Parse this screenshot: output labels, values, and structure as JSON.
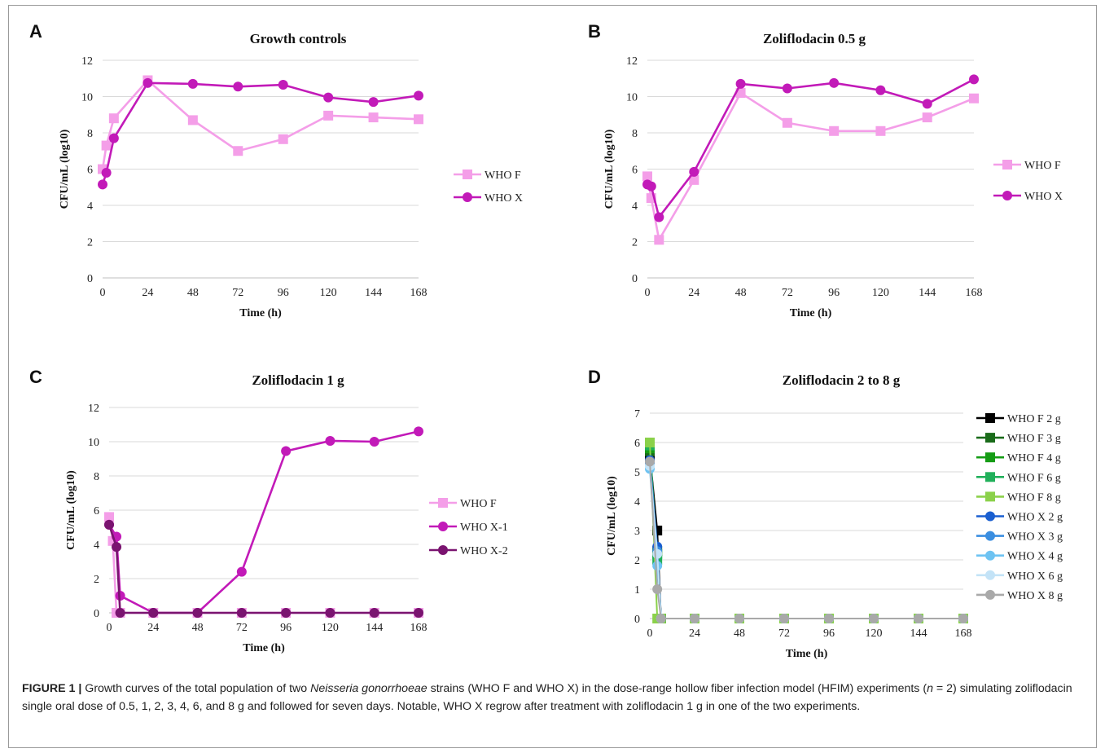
{
  "caption": {
    "label": "FIGURE 1 |",
    "text_1": " Growth curves of the total population of two ",
    "species": "Neisseria gonorrhoeae",
    "text_2": " strains (WHO F and WHO X) in the dose-range hollow fiber infection model (HFIM) experiments (",
    "n": "n",
    "text_3": " = 2) simulating zoliflodacin single oral dose of 0.5, 1, 2, 3, 4, 6, and 8 g and followed for seven days. Notable, WHO X regrow after treatment with zoliflodacin 1 g in one of the two experiments."
  },
  "chart_data": [
    {
      "panel": "A",
      "type": "line",
      "title": "Growth controls",
      "xlabel": "Time (h)",
      "ylabel": "CFU/mL (log10)",
      "xlim": [
        0,
        168
      ],
      "ylim": [
        0,
        12
      ],
      "xticks": [
        0,
        24,
        48,
        72,
        96,
        120,
        144,
        168
      ],
      "yticks": [
        0,
        2,
        4,
        6,
        8,
        10,
        12
      ],
      "grid": true,
      "legend": "right",
      "series": [
        {
          "name": "WHO F",
          "color": "#f49ee8",
          "marker": "square",
          "x": [
            0,
            2,
            6,
            24,
            48,
            72,
            96,
            120,
            144,
            168
          ],
          "y": [
            6.0,
            7.3,
            8.8,
            10.9,
            8.7,
            7.0,
            7.65,
            8.95,
            8.85,
            8.75
          ]
        },
        {
          "name": "WHO X",
          "color": "#c21ab8",
          "marker": "circle",
          "x": [
            0,
            2,
            6,
            24,
            48,
            72,
            96,
            120,
            144,
            168
          ],
          "y": [
            5.15,
            5.8,
            7.7,
            10.75,
            10.7,
            10.55,
            10.65,
            9.95,
            9.7,
            10.05
          ]
        }
      ]
    },
    {
      "panel": "B",
      "type": "line",
      "title": "Zoliflodacin 0.5 g",
      "xlabel": "Time (h)",
      "ylabel": "CFU/mL (log10)",
      "xlim": [
        0,
        168
      ],
      "ylim": [
        0,
        12
      ],
      "xticks": [
        0,
        24,
        48,
        72,
        96,
        120,
        144,
        168
      ],
      "yticks": [
        0,
        2,
        4,
        6,
        8,
        10,
        12
      ],
      "grid": true,
      "legend": "right",
      "series": [
        {
          "name": "WHO F",
          "color": "#f49ee8",
          "marker": "square",
          "x": [
            0,
            2,
            6,
            24,
            48,
            72,
            96,
            120,
            144,
            168
          ],
          "y": [
            5.6,
            4.4,
            2.1,
            5.4,
            10.2,
            8.55,
            8.1,
            8.1,
            8.85,
            9.9
          ]
        },
        {
          "name": "WHO X",
          "color": "#c21ab8",
          "marker": "circle",
          "x": [
            0,
            2,
            6,
            24,
            48,
            72,
            96,
            120,
            144,
            168
          ],
          "y": [
            5.15,
            5.05,
            3.35,
            5.85,
            10.7,
            10.45,
            10.75,
            10.35,
            9.6,
            10.95
          ]
        }
      ]
    },
    {
      "panel": "C",
      "type": "line",
      "title": "Zoliflodacin 1 g",
      "xlabel": "Time (h)",
      "ylabel": "CFU/mL (log10)",
      "xlim": [
        0,
        168
      ],
      "ylim": [
        0,
        12
      ],
      "xticks": [
        0,
        24,
        48,
        72,
        96,
        120,
        144,
        168
      ],
      "yticks": [
        0,
        2,
        4,
        6,
        8,
        10,
        12
      ],
      "grid": true,
      "legend": "right",
      "series": [
        {
          "name": "WHO F",
          "color": "#f49ee8",
          "marker": "square",
          "x": [
            0,
            2,
            4,
            6,
            24,
            48,
            72,
            96,
            120,
            144,
            168
          ],
          "y": [
            5.6,
            4.2,
            0,
            0,
            0,
            0,
            0,
            0,
            0,
            0,
            0
          ]
        },
        {
          "name": "WHO X-1",
          "color": "#c21ab8",
          "marker": "circle",
          "x": [
            0,
            4,
            6,
            24,
            48,
            72,
            96,
            120,
            144,
            168
          ],
          "y": [
            5.15,
            4.45,
            1.0,
            0,
            0,
            2.4,
            9.45,
            10.05,
            10.0,
            10.6
          ]
        },
        {
          "name": "WHO X-2",
          "color": "#7a1470",
          "marker": "circle",
          "x": [
            0,
            4,
            6,
            24,
            48,
            72,
            96,
            120,
            144,
            168
          ],
          "y": [
            5.15,
            3.85,
            0,
            0,
            0,
            0,
            0,
            0,
            0,
            0
          ]
        }
      ]
    },
    {
      "panel": "D",
      "type": "line",
      "title": "Zoliflodacin 2 to 8 g",
      "xlabel": "Time (h)",
      "ylabel": "CFU/mL (log10)",
      "xlim": [
        0,
        168
      ],
      "ylim": [
        0,
        7
      ],
      "xticks": [
        0,
        24,
        48,
        72,
        96,
        120,
        144,
        168
      ],
      "yticks": [
        0,
        1,
        2,
        3,
        4,
        5,
        6,
        7
      ],
      "grid": true,
      "legend": "right",
      "series": [
        {
          "name": "WHO F 2 g",
          "color": "#000000",
          "marker": "square",
          "x": [
            0,
            4,
            6,
            24,
            48,
            72,
            96,
            120,
            144,
            168
          ],
          "y": [
            5.6,
            3.0,
            0,
            0,
            0,
            0,
            0,
            0,
            0,
            0
          ]
        },
        {
          "name": "WHO F 3 g",
          "color": "#1a6b1a",
          "marker": "square",
          "x": [
            0,
            4,
            6,
            24,
            48,
            72,
            96,
            120,
            144,
            168
          ],
          "y": [
            5.7,
            2.3,
            0,
            0,
            0,
            0,
            0,
            0,
            0,
            0
          ]
        },
        {
          "name": "WHO F 4 g",
          "color": "#149c14",
          "marker": "square",
          "x": [
            0,
            4,
            6,
            24,
            48,
            72,
            96,
            120,
            144,
            168
          ],
          "y": [
            5.8,
            2.2,
            0,
            0,
            0,
            0,
            0,
            0,
            0,
            0
          ]
        },
        {
          "name": "WHO F 6 g",
          "color": "#21b05a",
          "marker": "square",
          "x": [
            0,
            4,
            6,
            24,
            48,
            72,
            96,
            120,
            144,
            168
          ],
          "y": [
            5.9,
            2.0,
            0,
            0,
            0,
            0,
            0,
            0,
            0,
            0
          ]
        },
        {
          "name": "WHO F 8 g",
          "color": "#8bd14a",
          "marker": "square",
          "x": [
            0,
            4,
            6,
            24,
            48,
            72,
            96,
            120,
            144,
            168
          ],
          "y": [
            6.0,
            0,
            0,
            0,
            0,
            0,
            0,
            0,
            0,
            0
          ]
        },
        {
          "name": "WHO X 2 g",
          "color": "#1a5fd0",
          "marker": "circle",
          "x": [
            0,
            4,
            6,
            24,
            48,
            72,
            96,
            120,
            144,
            168
          ],
          "y": [
            5.4,
            2.45,
            0,
            0,
            0,
            0,
            0,
            0,
            0,
            0
          ]
        },
        {
          "name": "WHO X 3 g",
          "color": "#3a8ee0",
          "marker": "circle",
          "x": [
            0,
            4,
            6,
            24,
            48,
            72,
            96,
            120,
            144,
            168
          ],
          "y": [
            5.3,
            2.3,
            0,
            0,
            0,
            0,
            0,
            0,
            0,
            0
          ]
        },
        {
          "name": "WHO X 4 g",
          "color": "#6ec3f2",
          "marker": "circle",
          "x": [
            0,
            4,
            6,
            24,
            48,
            72,
            96,
            120,
            144,
            168
          ],
          "y": [
            5.1,
            1.8,
            0,
            0,
            0,
            0,
            0,
            0,
            0,
            0
          ]
        },
        {
          "name": "WHO X 6 g",
          "color": "#c3e3f7",
          "marker": "circle",
          "x": [
            0,
            4,
            6,
            24,
            48,
            72,
            96,
            120,
            144,
            168
          ],
          "y": [
            5.2,
            2.2,
            0,
            0,
            0,
            0,
            0,
            0,
            0,
            0
          ]
        },
        {
          "name": "WHO X 8 g",
          "color": "#a9a9a9",
          "marker": "circle",
          "x": [
            0,
            4,
            6,
            24,
            48,
            72,
            96,
            120,
            144,
            168
          ],
          "y": [
            5.35,
            1.0,
            0,
            0,
            0,
            0,
            0,
            0,
            0,
            0
          ]
        }
      ]
    }
  ]
}
